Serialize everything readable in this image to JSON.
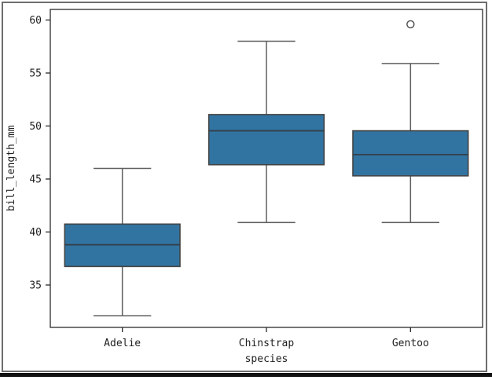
{
  "chart_data": {
    "type": "boxplot",
    "title": "",
    "xlabel": "species",
    "ylabel": "bill_length_mm",
    "categories": [
      "Adelie",
      "Chinstrap",
      "Gentoo"
    ],
    "ylim": [
      31,
      61
    ],
    "yticks": [
      35,
      40,
      45,
      50,
      55,
      60
    ],
    "grid": false,
    "legend": null,
    "boxes": [
      {
        "category": "Adelie",
        "whisker_low": 32.1,
        "q1": 36.75,
        "median": 38.8,
        "q3": 40.75,
        "whisker_high": 46.0,
        "outliers": []
      },
      {
        "category": "Chinstrap",
        "whisker_low": 40.9,
        "q1": 46.35,
        "median": 49.55,
        "q3": 51.08,
        "whisker_high": 58.0,
        "outliers": []
      },
      {
        "category": "Gentoo",
        "whisker_low": 40.9,
        "q1": 45.3,
        "median": 47.3,
        "q3": 49.55,
        "whisker_high": 55.9,
        "outliers": [
          59.6
        ]
      }
    ],
    "colors": {
      "box_fill": "#3274a1",
      "box_edge": "#424242",
      "median_line": "#32414c",
      "whisker": "#5f5f5f",
      "outlier_edge": "#4a4a4a",
      "axis": "#2b2b2b",
      "tick_label": "#1f1f1f",
      "background": "#ffffff"
    }
  },
  "frame": {
    "border_color": "#6e6e6e",
    "bottom_bar_color": "#111111"
  }
}
